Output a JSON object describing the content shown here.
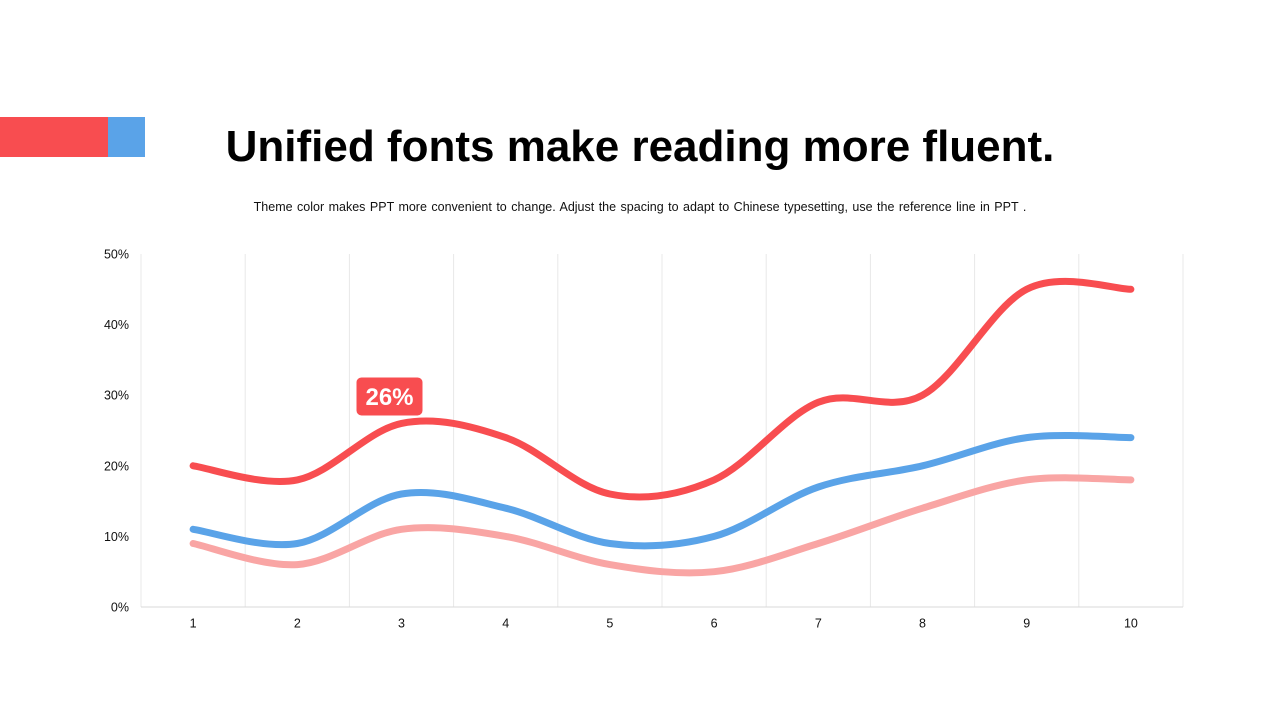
{
  "slide": {
    "title": "Unified fonts make reading more fluent.",
    "subtitle": "Theme color makes PPT more convenient  to change.  Adjust  the spacing  to adapt to Chinese  typesetting, use the reference line  in  PPT ."
  },
  "colors": {
    "red": "#f84d50",
    "blue": "#5aa3e8",
    "pink": "#f9a5a4",
    "grid": "#e8e8e8",
    "axis": "#d9d9d9"
  },
  "chart_data": {
    "type": "line",
    "smooth": true,
    "x": [
      "1",
      "2",
      "3",
      "4",
      "5",
      "6",
      "7",
      "8",
      "9",
      "10"
    ],
    "ylim": [
      0,
      50
    ],
    "yticks": [
      "0%",
      "10%",
      "20%",
      "30%",
      "40%",
      "50%"
    ],
    "xlabel": "",
    "ylabel": "",
    "grid": "vertical",
    "legend": "none",
    "series": [
      {
        "color": "#f84d50",
        "values": [
          20,
          18,
          26,
          24,
          16,
          18,
          29,
          30,
          45,
          45
        ]
      },
      {
        "color": "#5aa3e8",
        "values": [
          11,
          9,
          16,
          14,
          9,
          10,
          17,
          20,
          24,
          24
        ]
      },
      {
        "color": "#f9a5a4",
        "values": [
          9,
          6,
          11,
          10,
          6,
          5,
          9,
          14,
          18,
          18
        ]
      }
    ],
    "annotations": [
      {
        "series": 0,
        "index": 2,
        "text": "26%"
      }
    ]
  }
}
